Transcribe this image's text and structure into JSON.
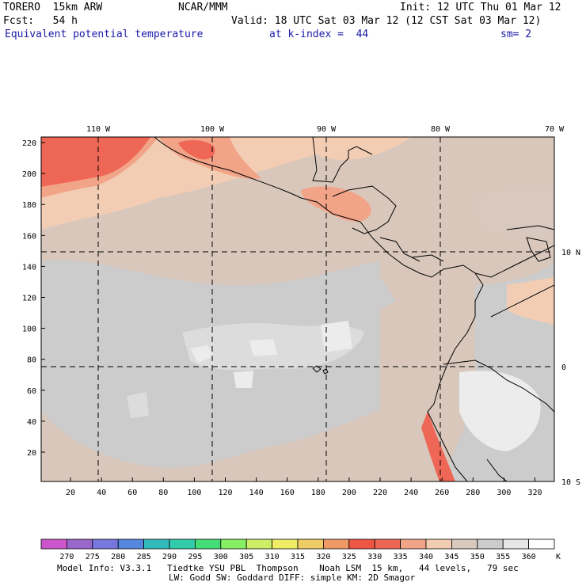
{
  "header": {
    "model": "TORERO  15km ARW",
    "center": "NCAR/MMM",
    "init": "Init: 12 UTC Thu 01 Mar 12",
    "fcst": "Fcst:   54 h",
    "valid": "Valid: 18 UTC Sat 03 Mar 12 (12 CST Sat 03 Mar 12)",
    "field": "Equivalent potential temperature",
    "level": "at k-index =  44",
    "smooth": "sm= 2"
  },
  "map": {
    "lon_labels": [
      "110 W",
      "100 W",
      "90 W",
      "80 W",
      "70 W"
    ],
    "lat_labels": [
      "10 N",
      "0",
      "10 S"
    ],
    "y_ticks": [
      "20",
      "40",
      "60",
      "80",
      "100",
      "120",
      "140",
      "160",
      "180",
      "200",
      "220"
    ],
    "x_ticks": [
      "20",
      "40",
      "60",
      "80",
      "100",
      "120",
      "140",
      "160",
      "180",
      "200",
      "220",
      "240",
      "260",
      "280",
      "300",
      "320"
    ]
  },
  "colorbar": {
    "labels": [
      "270",
      "275",
      "280",
      "285",
      "290",
      "295",
      "300",
      "305",
      "310",
      "315",
      "320",
      "325",
      "330",
      "335",
      "340",
      "345",
      "350",
      "355",
      "360"
    ],
    "unit": "K",
    "colors": [
      "#cc55cc",
      "#9966cc",
      "#7777dd",
      "#5588dd",
      "#33bbbb",
      "#33ccaa",
      "#44dd77",
      "#88ee66",
      "#ccee66",
      "#eeee66",
      "#eecc66",
      "#ee9966",
      "#ee5544",
      "#ee6655",
      "#f2a488",
      "#f2cdb4",
      "#d8c8be",
      "#cccccc",
      "#e6e6e6",
      "#ffffff"
    ]
  },
  "footer": {
    "line1": "Model Info: V3.3.1   Tiedtke YSU PBL  Thompson    Noah LSM  15 km,   44 levels,   79 sec",
    "line2": "LW: Godd SW: Goddard DIFF: simple KM: 2D Smagor"
  }
}
